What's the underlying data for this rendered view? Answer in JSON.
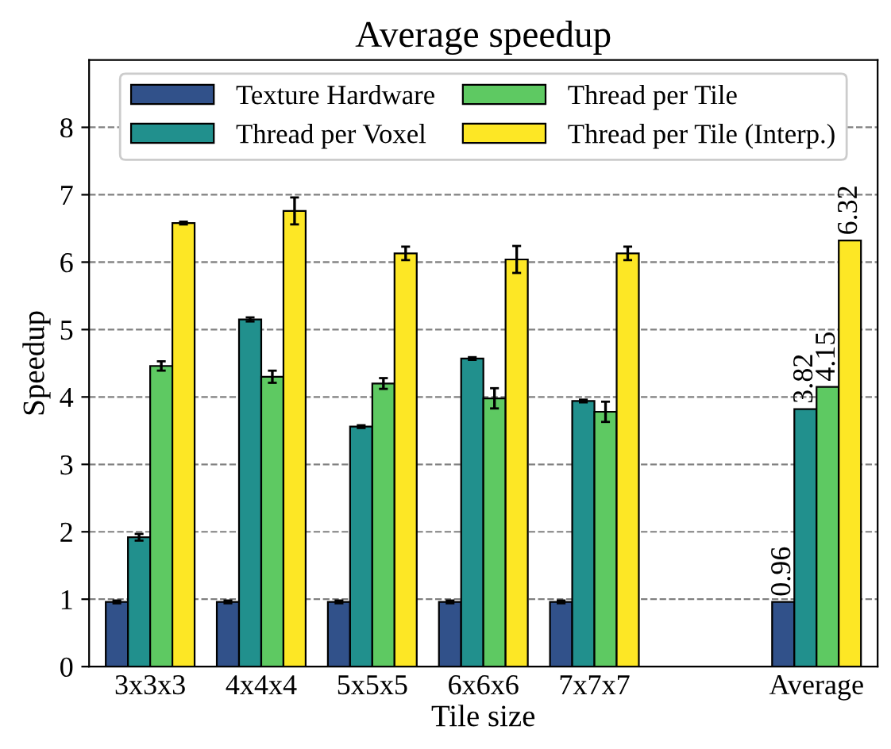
{
  "chart_data": {
    "type": "bar",
    "title": "Average speedup",
    "xlabel": "Tile size",
    "ylabel": "Speedup",
    "categories": [
      "3x3x3",
      "4x4x4",
      "5x5x5",
      "6x6x6",
      "7x7x7",
      null,
      "Average"
    ],
    "series": [
      {
        "name": "Texture Hardware",
        "color": "#31518a",
        "values": [
          0.96,
          0.96,
          0.96,
          0.96,
          0.96,
          null,
          0.96
        ],
        "errors": [
          0.02,
          0.02,
          0.02,
          0.02,
          0.02,
          null,
          null
        ],
        "value_labels": [
          null,
          null,
          null,
          null,
          null,
          null,
          "0.96"
        ]
      },
      {
        "name": "Thread per Voxel",
        "color": "#21908d",
        "values": [
          1.92,
          5.15,
          3.56,
          4.57,
          3.94,
          null,
          3.82
        ],
        "errors": [
          0.05,
          0.03,
          0.02,
          0.02,
          0.02,
          null,
          null
        ],
        "value_labels": [
          null,
          null,
          null,
          null,
          null,
          null,
          "3.82"
        ]
      },
      {
        "name": "Thread per Tile",
        "color": "#5ec962",
        "values": [
          4.46,
          4.3,
          4.2,
          3.98,
          3.78,
          null,
          4.15
        ],
        "errors": [
          0.07,
          0.09,
          0.08,
          0.15,
          0.15,
          null,
          null
        ],
        "value_labels": [
          null,
          null,
          null,
          null,
          null,
          null,
          "4.15"
        ]
      },
      {
        "name": "Thread per Tile (Interp.)",
        "color": "#fde725",
        "values": [
          6.58,
          6.76,
          6.13,
          6.04,
          6.13,
          null,
          6.32
        ],
        "errors": [
          0.02,
          0.2,
          0.1,
          0.2,
          0.1,
          null,
          null
        ],
        "value_labels": [
          null,
          null,
          null,
          null,
          null,
          null,
          "6.32"
        ]
      }
    ],
    "ylim": [
      0,
      9
    ],
    "yticks": [
      0,
      1,
      2,
      3,
      4,
      5,
      6,
      7,
      8
    ],
    "grid": "y",
    "legend": "top"
  }
}
